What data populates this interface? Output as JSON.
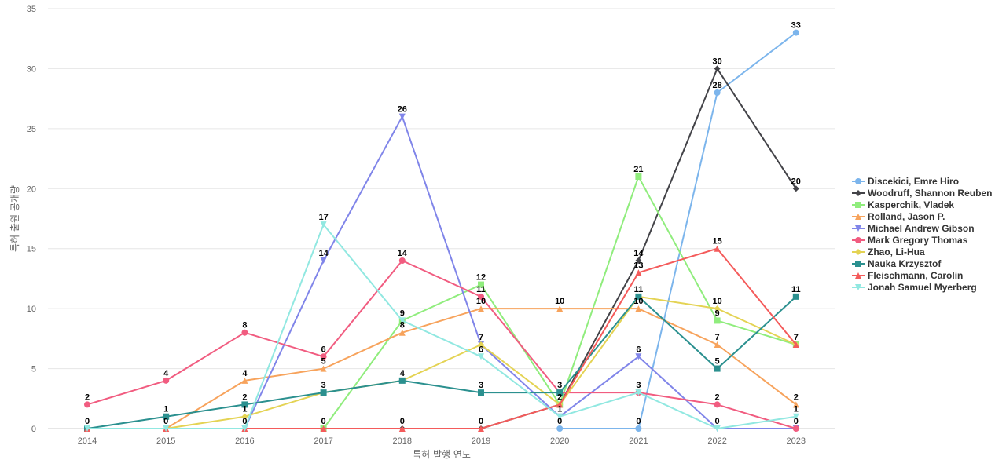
{
  "chart_data": {
    "type": "line",
    "title": "",
    "xlabel": "특허 발행 연도",
    "ylabel": "특허 출원 공개량",
    "x": [
      "2014",
      "2015",
      "2016",
      "2017",
      "2018",
      "2019",
      "2020",
      "2021",
      "2022",
      "2023"
    ],
    "ylim": [
      0,
      35
    ],
    "yticks": [
      0,
      5,
      10,
      15,
      20,
      25,
      30,
      35
    ],
    "grid": true,
    "legend_position": "right",
    "series": [
      {
        "name": "Discekici, Emre Hiro",
        "color": "#7cb5ec",
        "marker": "circle",
        "values": [
          null,
          null,
          null,
          null,
          null,
          null,
          0,
          0,
          28,
          33
        ]
      },
      {
        "name": "Woodruff, Shannon Reuben",
        "color": "#434348",
        "marker": "diamond",
        "values": [
          null,
          null,
          null,
          null,
          0,
          0,
          2,
          14,
          30,
          20
        ]
      },
      {
        "name": "Kasperchik, Vladek",
        "color": "#90ed7d",
        "marker": "square",
        "values": [
          null,
          null,
          null,
          0,
          9,
          12,
          2,
          21,
          9,
          7
        ]
      },
      {
        "name": "Rolland, Jason P.",
        "color": "#f7a35c",
        "marker": "triangle",
        "values": [
          0,
          0,
          4,
          5,
          8,
          10,
          10,
          10,
          7,
          2
        ]
      },
      {
        "name": "Michael Andrew Gibson",
        "color": "#8085e9",
        "marker": "triangle-down",
        "values": [
          null,
          null,
          0,
          14,
          26,
          7,
          1,
          6,
          0,
          0
        ]
      },
      {
        "name": "Mark Gregory Thomas",
        "color": "#f15c80",
        "marker": "circle",
        "values": [
          2,
          4,
          8,
          6,
          14,
          11,
          3,
          3,
          2,
          0
        ]
      },
      {
        "name": "Zhao, Li-Hua",
        "color": "#e4d354",
        "marker": "diamond",
        "values": [
          null,
          0,
          1,
          3,
          4,
          7,
          2,
          11,
          10,
          7
        ]
      },
      {
        "name": "Nauka Krzysztof",
        "color": "#2b908f",
        "marker": "square",
        "values": [
          0,
          1,
          2,
          3,
          4,
          3,
          3,
          11,
          5,
          11
        ]
      },
      {
        "name": "Fleischmann, Carolin",
        "color": "#f45b5b",
        "marker": "triangle",
        "values": [
          0,
          0,
          0,
          0,
          0,
          0,
          2,
          13,
          15,
          7
        ]
      },
      {
        "name": "Jonah Samuel Myerberg",
        "color": "#91e8e1",
        "marker": "triangle-down",
        "values": [
          0,
          0,
          0,
          17,
          9,
          6,
          1,
          3,
          0,
          1
        ]
      }
    ],
    "data_labels": [
      {
        "x": "2014",
        "text": "2",
        "y": 2
      },
      {
        "x": "2014",
        "text": "0",
        "y": 0
      },
      {
        "x": "2015",
        "text": "4",
        "y": 4
      },
      {
        "x": "2015",
        "text": "1",
        "y": 1
      },
      {
        "x": "2015",
        "text": "0",
        "y": 0
      },
      {
        "x": "2016",
        "text": "8",
        "y": 8
      },
      {
        "x": "2016",
        "text": "4",
        "y": 4
      },
      {
        "x": "2016",
        "text": "2",
        "y": 2
      },
      {
        "x": "2016",
        "text": "1",
        "y": 1
      },
      {
        "x": "2016",
        "text": "0",
        "y": 0
      },
      {
        "x": "2017",
        "text": "17",
        "y": 17
      },
      {
        "x": "2017",
        "text": "14",
        "y": 14
      },
      {
        "x": "2017",
        "text": "6",
        "y": 6
      },
      {
        "x": "2017",
        "text": "5",
        "y": 5
      },
      {
        "x": "2017",
        "text": "3",
        "y": 3
      },
      {
        "x": "2017",
        "text": "0",
        "y": 0
      },
      {
        "x": "2018",
        "text": "26",
        "y": 26
      },
      {
        "x": "2018",
        "text": "14",
        "y": 14
      },
      {
        "x": "2018",
        "text": "9",
        "y": 9
      },
      {
        "x": "2018",
        "text": "8",
        "y": 8
      },
      {
        "x": "2018",
        "text": "4",
        "y": 4
      },
      {
        "x": "2018",
        "text": "0",
        "y": 0
      },
      {
        "x": "2019",
        "text": "12",
        "y": 12
      },
      {
        "x": "2019",
        "text": "11",
        "y": 11
      },
      {
        "x": "2019",
        "text": "10",
        "y": 10
      },
      {
        "x": "2019",
        "text": "7",
        "y": 7
      },
      {
        "x": "2019",
        "text": "6",
        "y": 6
      },
      {
        "x": "2019",
        "text": "3",
        "y": 3
      },
      {
        "x": "2019",
        "text": "0",
        "y": 0
      },
      {
        "x": "2020",
        "text": "10",
        "y": 10
      },
      {
        "x": "2020",
        "text": "3",
        "y": 3
      },
      {
        "x": "2020",
        "text": "2",
        "y": 2
      },
      {
        "x": "2020",
        "text": "1",
        "y": 1
      },
      {
        "x": "2020",
        "text": "0",
        "y": 0
      },
      {
        "x": "2021",
        "text": "21",
        "y": 21
      },
      {
        "x": "2021",
        "text": "14",
        "y": 14
      },
      {
        "x": "2021",
        "text": "13",
        "y": 13
      },
      {
        "x": "2021",
        "text": "11",
        "y": 11
      },
      {
        "x": "2021",
        "text": "10",
        "y": 10
      },
      {
        "x": "2021",
        "text": "6",
        "y": 6
      },
      {
        "x": "2021",
        "text": "3",
        "y": 3
      },
      {
        "x": "2021",
        "text": "0",
        "y": 0
      },
      {
        "x": "2022",
        "text": "30",
        "y": 30
      },
      {
        "x": "2022",
        "text": "28",
        "y": 28
      },
      {
        "x": "2022",
        "text": "15",
        "y": 15
      },
      {
        "x": "2022",
        "text": "10",
        "y": 10
      },
      {
        "x": "2022",
        "text": "9",
        "y": 9
      },
      {
        "x": "2022",
        "text": "7",
        "y": 7
      },
      {
        "x": "2022",
        "text": "5",
        "y": 5
      },
      {
        "x": "2022",
        "text": "2",
        "y": 2
      },
      {
        "x": "2022",
        "text": "0",
        "y": 0
      },
      {
        "x": "2023",
        "text": "33",
        "y": 33
      },
      {
        "x": "2023",
        "text": "20",
        "y": 20
      },
      {
        "x": "2023",
        "text": "11",
        "y": 11
      },
      {
        "x": "2023",
        "text": "7",
        "y": 7
      },
      {
        "x": "2023",
        "text": "2",
        "y": 2
      },
      {
        "x": "2023",
        "text": "1",
        "y": 1
      },
      {
        "x": "2023",
        "text": "0",
        "y": 0
      }
    ]
  }
}
